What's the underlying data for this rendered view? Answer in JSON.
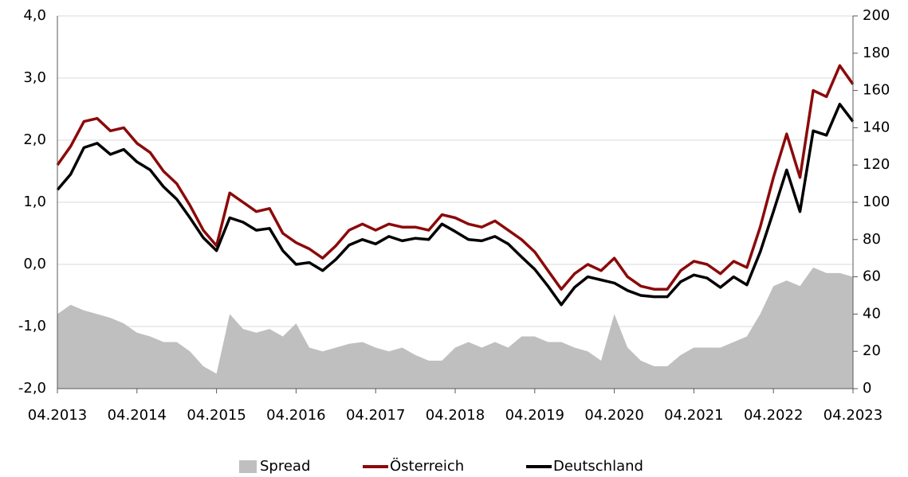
{
  "chart_data": {
    "type": "line",
    "x": [
      "04.2013",
      "06.2013",
      "08.2013",
      "10.2013",
      "12.2013",
      "02.2014",
      "04.2014",
      "06.2014",
      "08.2014",
      "10.2014",
      "12.2014",
      "02.2015",
      "04.2015",
      "06.2015",
      "08.2015",
      "10.2015",
      "12.2015",
      "02.2016",
      "04.2016",
      "06.2016",
      "08.2016",
      "10.2016",
      "12.2016",
      "02.2017",
      "04.2017",
      "06.2017",
      "08.2017",
      "10.2017",
      "12.2017",
      "02.2018",
      "04.2018",
      "06.2018",
      "08.2018",
      "10.2018",
      "12.2018",
      "02.2019",
      "04.2019",
      "06.2019",
      "08.2019",
      "10.2019",
      "12.2019",
      "02.2020",
      "04.2020",
      "06.2020",
      "08.2020",
      "10.2020",
      "12.2020",
      "02.2021",
      "04.2021",
      "06.2021",
      "08.2021",
      "10.2021",
      "12.2021",
      "02.2022",
      "04.2022",
      "06.2022",
      "08.2022",
      "10.2022",
      "12.2022",
      "02.2023",
      "04.2023"
    ],
    "series": [
      {
        "name": "Spread",
        "color": "#bfbfbf",
        "axis": "y2",
        "fill": true,
        "values": [
          40,
          45,
          42,
          40,
          38,
          35,
          30,
          28,
          25,
          25,
          20,
          12,
          8,
          40,
          32,
          30,
          32,
          28,
          35,
          22,
          20,
          22,
          24,
          25,
          22,
          20,
          22,
          18,
          15,
          15,
          22,
          25,
          22,
          25,
          22,
          28,
          28,
          25,
          25,
          22,
          20,
          15,
          40,
          22,
          15,
          12,
          12,
          18,
          22,
          22,
          22,
          25,
          28,
          40,
          55,
          58,
          55,
          65,
          62,
          62,
          60
        ]
      },
      {
        "name": "Österreich",
        "color": "#8b0a0a",
        "values": [
          1.6,
          1.9,
          2.3,
          2.35,
          2.15,
          2.2,
          1.95,
          1.8,
          1.5,
          1.3,
          0.95,
          0.55,
          0.3,
          1.15,
          1.0,
          0.85,
          0.9,
          0.5,
          0.35,
          0.25,
          0.1,
          0.3,
          0.55,
          0.65,
          0.55,
          0.65,
          0.6,
          0.6,
          0.55,
          0.8,
          0.75,
          0.65,
          0.6,
          0.7,
          0.55,
          0.4,
          0.2,
          -0.1,
          -0.4,
          -0.15,
          0.0,
          -0.1,
          0.1,
          -0.2,
          -0.35,
          -0.4,
          -0.4,
          -0.1,
          0.05,
          0.0,
          -0.15,
          0.05,
          -0.05,
          0.6,
          1.4,
          2.1,
          1.4,
          2.8,
          2.7,
          3.2,
          2.9
        ]
      },
      {
        "name": "Deutschland",
        "color": "#000000",
        "values": [
          1.2,
          1.45,
          1.88,
          1.95,
          1.77,
          1.85,
          1.65,
          1.52,
          1.25,
          1.05,
          0.75,
          0.43,
          0.22,
          0.75,
          0.68,
          0.55,
          0.58,
          0.22,
          0.0,
          0.03,
          -0.1,
          0.08,
          0.31,
          0.4,
          0.33,
          0.45,
          0.38,
          0.42,
          0.4,
          0.65,
          0.53,
          0.4,
          0.38,
          0.45,
          0.33,
          0.12,
          -0.08,
          -0.35,
          -0.65,
          -0.37,
          -0.2,
          -0.25,
          -0.3,
          -0.42,
          -0.5,
          -0.52,
          -0.52,
          -0.28,
          -0.17,
          -0.22,
          -0.37,
          -0.2,
          -0.33,
          0.2,
          0.85,
          1.52,
          0.85,
          2.15,
          2.08,
          2.58,
          2.3
        ]
      }
    ],
    "xlim": [
      "04.2013",
      "04.2023"
    ],
    "xticks": [
      "04.2013",
      "04.2014",
      "04.2015",
      "04.2016",
      "04.2017",
      "04.2018",
      "04.2019",
      "04.2020",
      "04.2021",
      "04.2022",
      "04.2023"
    ],
    "ylim": [
      -2,
      4
    ],
    "yticks": [
      {
        "value": -2,
        "label": "-2,0"
      },
      {
        "value": -1,
        "label": "-1,0"
      },
      {
        "value": 0,
        "label": "0,0"
      },
      {
        "value": 1,
        "label": "1,0"
      },
      {
        "value": 2,
        "label": "2,0"
      },
      {
        "value": 3,
        "label": "3,0"
      },
      {
        "value": 4,
        "label": "4,0"
      }
    ],
    "y2lim": [
      0,
      200
    ],
    "y2ticks": [
      0,
      20,
      40,
      60,
      80,
      100,
      120,
      140,
      160,
      180,
      200
    ],
    "grid": true,
    "legend": "bottom"
  }
}
